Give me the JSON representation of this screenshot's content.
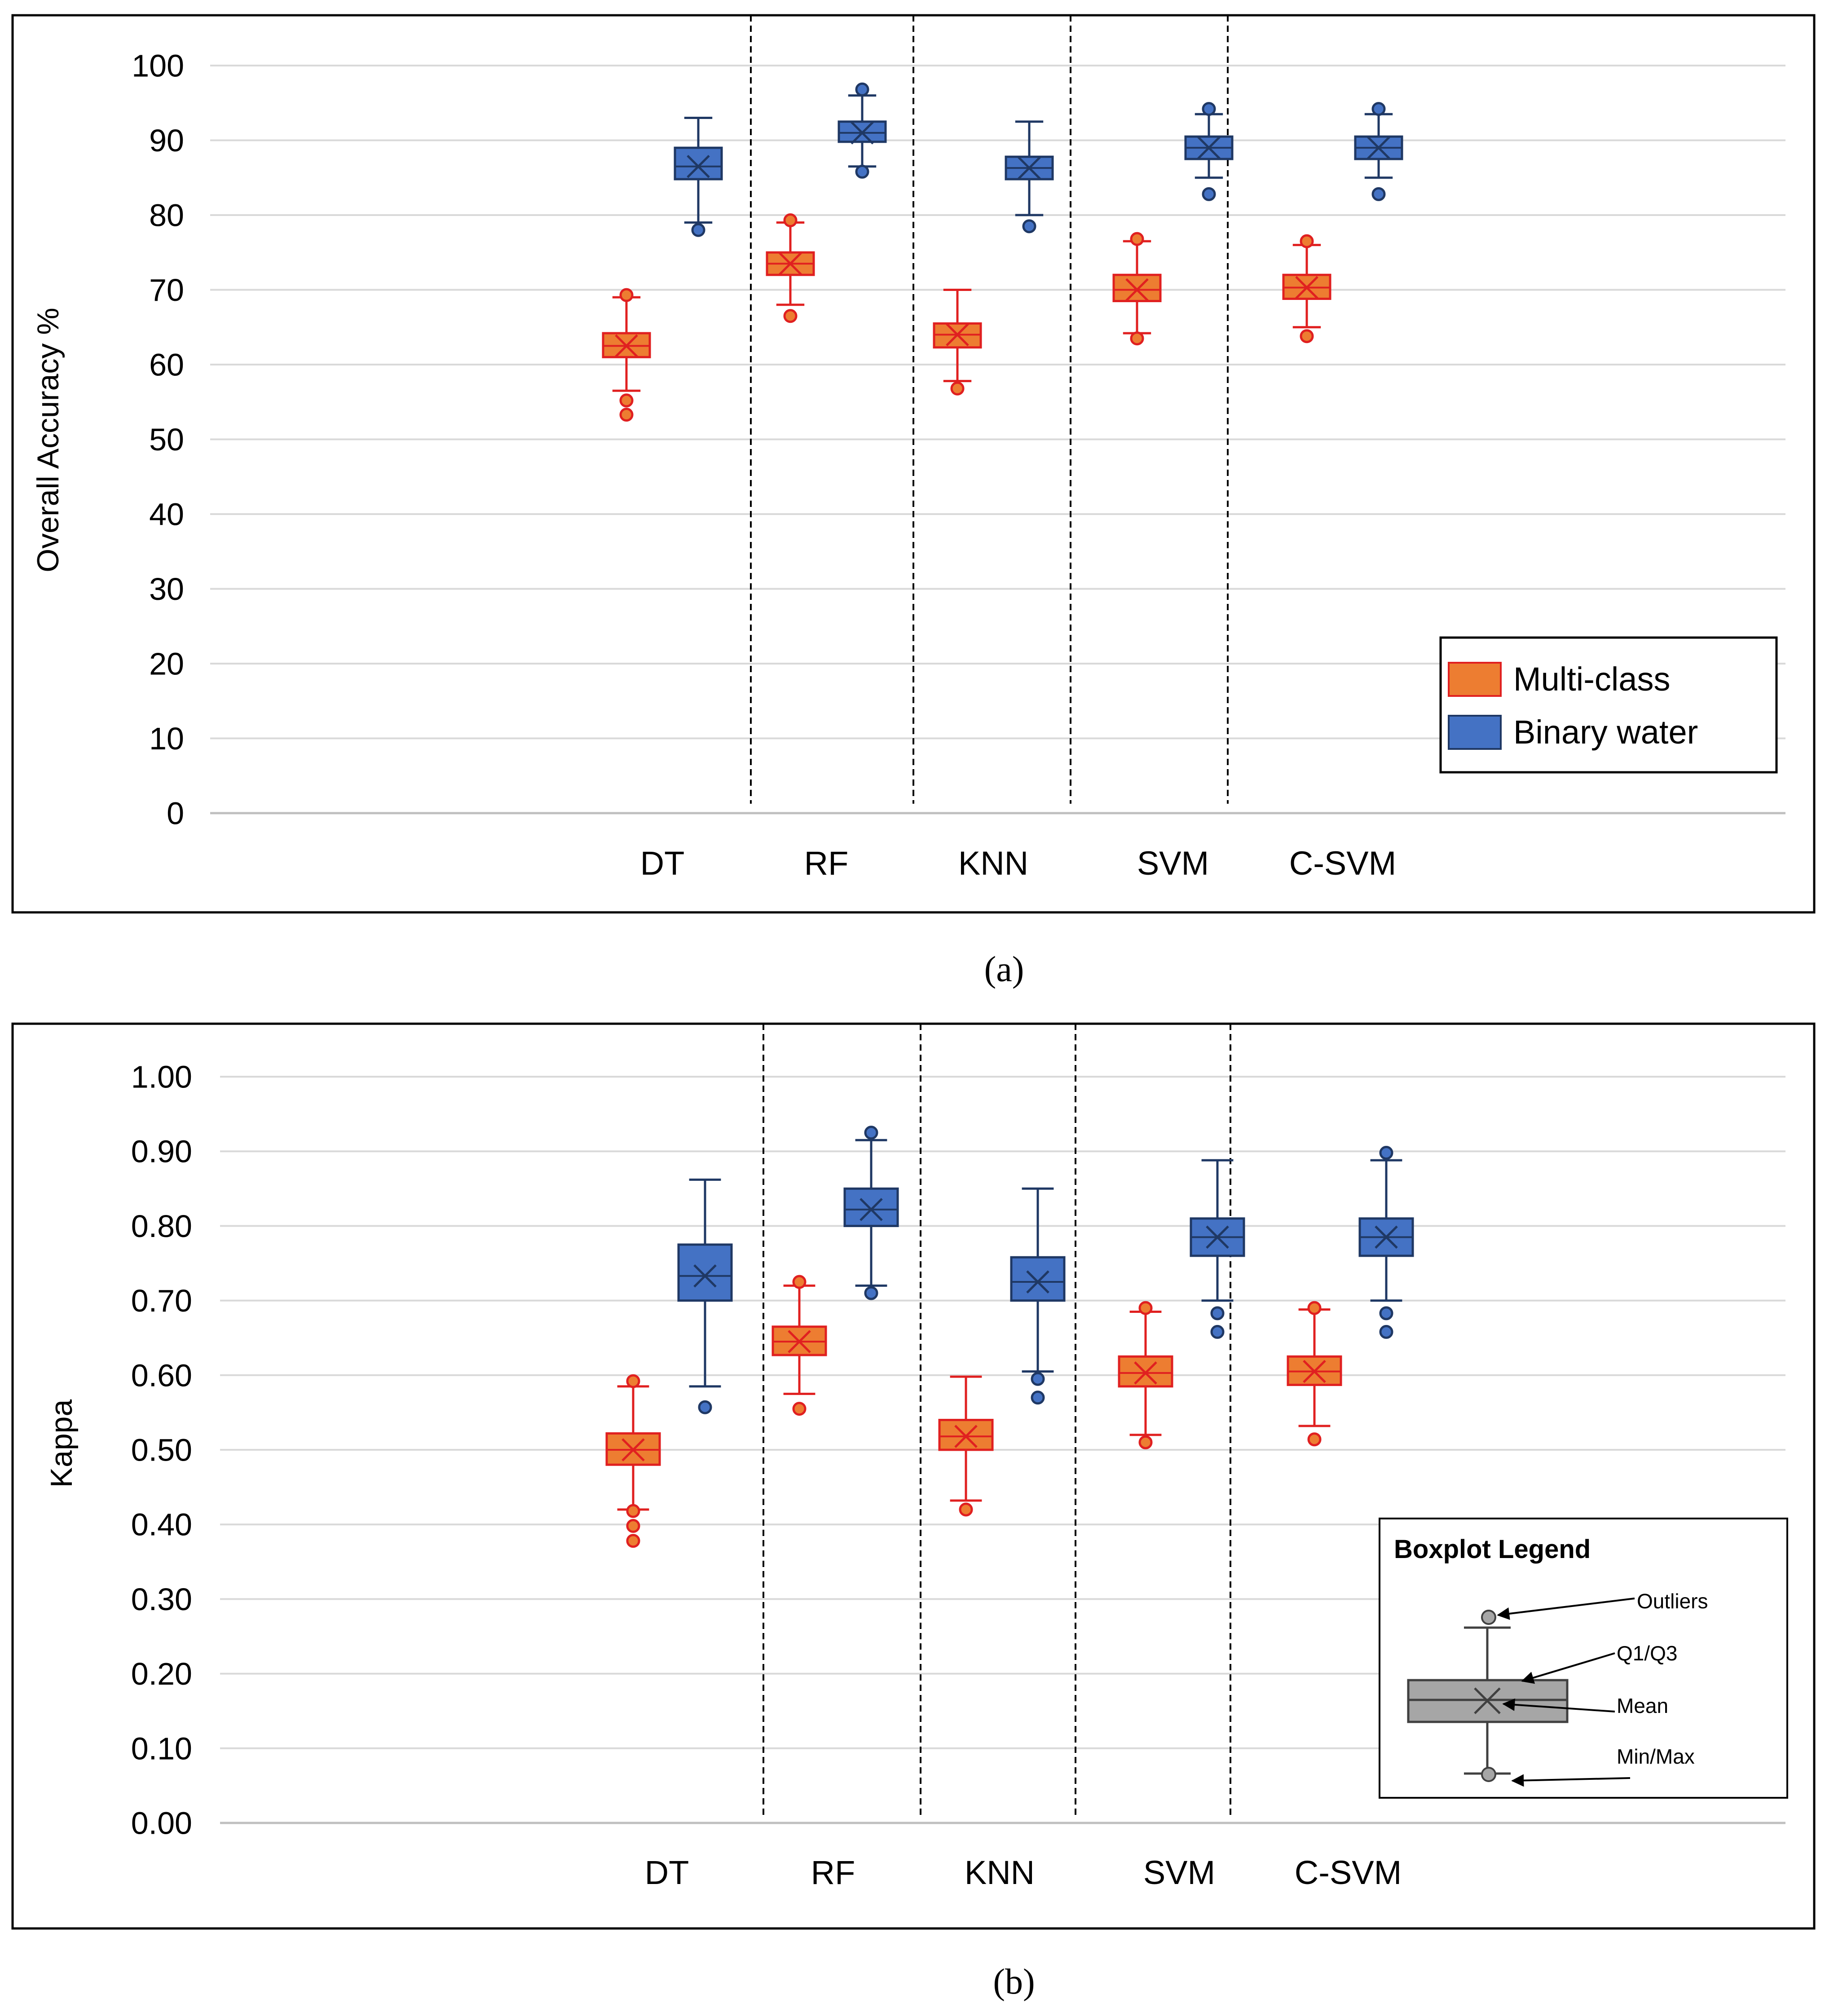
{
  "chart_data": [
    {
      "type": "box",
      "panel_label": "(a)",
      "ylabel": "Overall Accuracy %",
      "xlabel": "",
      "ylim": [
        0,
        100
      ],
      "ytick_labels": [
        "0",
        "10",
        "20",
        "30",
        "40",
        "50",
        "60",
        "70",
        "80",
        "90",
        "100"
      ],
      "yticks": [
        0,
        10,
        20,
        30,
        40,
        50,
        60,
        70,
        80,
        90,
        100
      ],
      "grid": true,
      "categories": [
        "DT",
        "RF",
        "KNN",
        "SVM",
        "C-SVM"
      ],
      "legend": {
        "position": "bottom-right",
        "entries": [
          {
            "label": "Multi-class",
            "color": "#ed7d31",
            "stroke": "#e02020"
          },
          {
            "label": "Binary water",
            "color": "#4472c4",
            "stroke": "#1f3864"
          }
        ]
      },
      "series": [
        {
          "name": "Multi-class",
          "color": "#ed7d31",
          "stroke": "#e02020",
          "boxes": [
            {
              "category": "DT",
              "min": 56.5,
              "q1": 61.0,
              "median": 62.5,
              "q3": 64.2,
              "max": 69.0,
              "mean": 62.5,
              "outliers": [
                55.2,
                53.3,
                69.3
              ]
            },
            {
              "category": "RF",
              "min": 68.0,
              "q1": 72.0,
              "median": 73.5,
              "q3": 75.0,
              "max": 79.0,
              "mean": 73.5,
              "outliers": [
                66.5,
                79.3
              ]
            },
            {
              "category": "KNN",
              "min": 57.8,
              "q1": 62.3,
              "median": 64.0,
              "q3": 65.5,
              "max": 70.0,
              "mean": 64.0,
              "outliers": [
                56.8
              ]
            },
            {
              "category": "SVM",
              "min": 64.2,
              "q1": 68.5,
              "median": 70.0,
              "q3": 72.0,
              "max": 76.5,
              "mean": 70.0,
              "outliers": [
                63.5,
                76.8
              ]
            },
            {
              "category": "C-SVM",
              "min": 65.0,
              "q1": 68.8,
              "median": 70.3,
              "q3": 72.0,
              "max": 76.0,
              "mean": 70.3,
              "outliers": [
                63.8,
                76.5
              ]
            }
          ]
        },
        {
          "name": "Binary water",
          "color": "#4472c4",
          "stroke": "#1f3864",
          "boxes": [
            {
              "category": "DT",
              "min": 79.0,
              "q1": 84.8,
              "median": 86.5,
              "q3": 89.0,
              "max": 93.0,
              "mean": 86.5,
              "outliers": [
                78.0
              ]
            },
            {
              "category": "RF",
              "min": 86.5,
              "q1": 89.8,
              "median": 91.0,
              "q3": 92.5,
              "max": 96.0,
              "mean": 91.0,
              "outliers": [
                85.8,
                96.8
              ]
            },
            {
              "category": "KNN",
              "min": 80.0,
              "q1": 84.8,
              "median": 86.3,
              "q3": 87.8,
              "max": 92.5,
              "mean": 86.3,
              "outliers": [
                78.5
              ]
            },
            {
              "category": "SVM",
              "min": 85.0,
              "q1": 87.5,
              "median": 89.0,
              "q3": 90.5,
              "max": 93.5,
              "mean": 89.0,
              "outliers": [
                82.8,
                94.2
              ]
            },
            {
              "category": "C-SVM",
              "min": 85.0,
              "q1": 87.5,
              "median": 89.0,
              "q3": 90.5,
              "max": 93.5,
              "mean": 89.0,
              "outliers": [
                82.8,
                94.2
              ]
            }
          ]
        }
      ]
    },
    {
      "type": "box",
      "panel_label": "(b)",
      "ylabel": "Kappa",
      "xlabel": "",
      "ylim": [
        0,
        1
      ],
      "ytick_labels": [
        "0.00",
        "0.10",
        "0.20",
        "0.30",
        "0.40",
        "0.50",
        "0.60",
        "0.70",
        "0.80",
        "0.90",
        "1.00"
      ],
      "yticks": [
        0,
        0.1,
        0.2,
        0.3,
        0.4,
        0.5,
        0.6,
        0.7,
        0.8,
        0.9,
        1.0
      ],
      "grid": true,
      "categories": [
        "DT",
        "RF",
        "KNN",
        "SVM",
        "C-SVM"
      ],
      "series": [
        {
          "name": "Multi-class",
          "color": "#ed7d31",
          "stroke": "#e02020",
          "boxes": [
            {
              "category": "DT",
              "min": 0.42,
              "q1": 0.48,
              "median": 0.5,
              "q3": 0.522,
              "max": 0.585,
              "mean": 0.5,
              "outliers": [
                0.592,
                0.418,
                0.398,
                0.378
              ]
            },
            {
              "category": "RF",
              "min": 0.575,
              "q1": 0.627,
              "median": 0.645,
              "q3": 0.665,
              "max": 0.72,
              "mean": 0.645,
              "outliers": [
                0.555,
                0.725
              ]
            },
            {
              "category": "KNN",
              "min": 0.432,
              "q1": 0.5,
              "median": 0.518,
              "q3": 0.54,
              "max": 0.598,
              "mean": 0.518,
              "outliers": [
                0.42
              ]
            },
            {
              "category": "SVM",
              "min": 0.52,
              "q1": 0.585,
              "median": 0.603,
              "q3": 0.625,
              "max": 0.685,
              "mean": 0.603,
              "outliers": [
                0.51,
                0.69
              ]
            },
            {
              "category": "C-SVM",
              "min": 0.532,
              "q1": 0.587,
              "median": 0.605,
              "q3": 0.625,
              "max": 0.688,
              "mean": 0.605,
              "outliers": [
                0.514,
                0.69
              ]
            }
          ]
        },
        {
          "name": "Binary water",
          "color": "#4472c4",
          "stroke": "#1f3864",
          "boxes": [
            {
              "category": "DT",
              "min": 0.585,
              "q1": 0.7,
              "median": 0.733,
              "q3": 0.775,
              "max": 0.862,
              "mean": 0.733,
              "outliers": [
                0.557
              ]
            },
            {
              "category": "RF",
              "min": 0.72,
              "q1": 0.8,
              "median": 0.822,
              "q3": 0.85,
              "max": 0.915,
              "mean": 0.822,
              "outliers": [
                0.71,
                0.925
              ]
            },
            {
              "category": "KNN",
              "min": 0.605,
              "q1": 0.7,
              "median": 0.725,
              "q3": 0.758,
              "max": 0.85,
              "mean": 0.725,
              "outliers": [
                0.595,
                0.57
              ]
            },
            {
              "category": "SVM",
              "min": 0.7,
              "q1": 0.76,
              "median": 0.785,
              "q3": 0.81,
              "max": 0.888,
              "mean": 0.785,
              "outliers": [
                0.683,
                0.658
              ]
            },
            {
              "category": "C-SVM",
              "min": 0.7,
              "q1": 0.76,
              "median": 0.785,
              "q3": 0.81,
              "max": 0.888,
              "mean": 0.785,
              "outliers": [
                0.898,
                0.683,
                0.658
              ]
            }
          ]
        }
      ],
      "boxplot_legend": {
        "title": "Boxplot Legend",
        "labels": {
          "outliers": "Outliers",
          "q1q3": "Q1/Q3",
          "mean": "Mean",
          "minmax": "Min/Max"
        }
      }
    }
  ]
}
